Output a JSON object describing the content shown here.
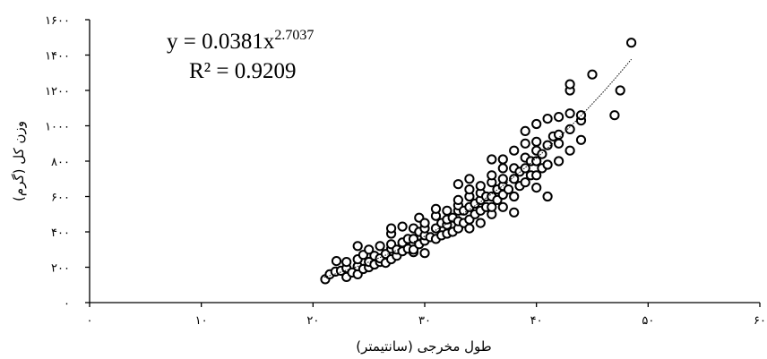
{
  "chart_data": {
    "type": "scatter",
    "xlabel": "طول مخرجی (سانتیمتر)",
    "ylabel": "وزن کل (گرم)",
    "xlim": [
      0,
      60
    ],
    "ylim": [
      0,
      1600
    ],
    "x_ticks": [
      0,
      10,
      20,
      30,
      40,
      50,
      60
    ],
    "y_ticks": [
      0,
      200,
      400,
      600,
      800,
      1000,
      1200,
      1400,
      1600
    ],
    "x_tick_labels": [
      "۰",
      "۱۰",
      "۲۰",
      "۳۰",
      "۴۰",
      "۵۰",
      "۶۰"
    ],
    "y_tick_labels": [
      "۰",
      "۲۰۰",
      "۴۰۰",
      "۶۰۰",
      "۸۰۰",
      "۱۰۰۰",
      "۱۲۰۰",
      "۱۴۰۰",
      "۱۶۰۰"
    ],
    "grid": false,
    "equation": {
      "main": "y = 0.0381x",
      "exponent": "2.7037",
      "r2_label": "R² = 0.9209"
    },
    "trendline": {
      "a": 0.0381,
      "b": 2.7037,
      "x_range": [
        21,
        48.5
      ]
    },
    "series": [
      {
        "marker": "open-circle",
        "points": [
          [
            21.1,
            132
          ],
          [
            21.5,
            160
          ],
          [
            22.0,
            175
          ],
          [
            22.1,
            235
          ],
          [
            22.5,
            180
          ],
          [
            23.0,
            145
          ],
          [
            23.0,
            195
          ],
          [
            23.0,
            230
          ],
          [
            23.5,
            170
          ],
          [
            24.0,
            160
          ],
          [
            24.0,
            205
          ],
          [
            24.0,
            245
          ],
          [
            24.0,
            320
          ],
          [
            24.5,
            190
          ],
          [
            24.5,
            270
          ],
          [
            25.0,
            200
          ],
          [
            25.0,
            230
          ],
          [
            25.0,
            300
          ],
          [
            25.5,
            215
          ],
          [
            25.5,
            265
          ],
          [
            26.0,
            230
          ],
          [
            26.0,
            250
          ],
          [
            26.0,
            320
          ],
          [
            26.5,
            225
          ],
          [
            26.5,
            275
          ],
          [
            27.0,
            245
          ],
          [
            27.0,
            305
          ],
          [
            27.0,
            330
          ],
          [
            27.0,
            390
          ],
          [
            27.0,
            420
          ],
          [
            27.5,
            265
          ],
          [
            27.5,
            300
          ],
          [
            28.0,
            290
          ],
          [
            28.0,
            340
          ],
          [
            28.0,
            430
          ],
          [
            28.5,
            305
          ],
          [
            28.5,
            360
          ],
          [
            29.0,
            285
          ],
          [
            29.0,
            300
          ],
          [
            29.0,
            360
          ],
          [
            29.0,
            420
          ],
          [
            29.5,
            330
          ],
          [
            29.5,
            400
          ],
          [
            29.5,
            480
          ],
          [
            30.0,
            280
          ],
          [
            30.0,
            350
          ],
          [
            30.0,
            380
          ],
          [
            30.0,
            420
          ],
          [
            30.0,
            450
          ],
          [
            30.5,
            370
          ],
          [
            31.0,
            360
          ],
          [
            31.0,
            420
          ],
          [
            31.0,
            490
          ],
          [
            31.0,
            530
          ],
          [
            31.5,
            380
          ],
          [
            31.5,
            450
          ],
          [
            32.0,
            390
          ],
          [
            32.0,
            440
          ],
          [
            32.0,
            470
          ],
          [
            32.0,
            520
          ],
          [
            32.5,
            400
          ],
          [
            32.5,
            480
          ],
          [
            33.0,
            420
          ],
          [
            33.0,
            460
          ],
          [
            33.0,
            520
          ],
          [
            33.0,
            550
          ],
          [
            33.0,
            580
          ],
          [
            33.0,
            670
          ],
          [
            33.5,
            450
          ],
          [
            33.5,
            520
          ],
          [
            34.0,
            420
          ],
          [
            34.0,
            470
          ],
          [
            34.0,
            540
          ],
          [
            34.0,
            600
          ],
          [
            34.0,
            640
          ],
          [
            34.0,
            700
          ],
          [
            34.5,
            500
          ],
          [
            34.5,
            560
          ],
          [
            35.0,
            450
          ],
          [
            35.0,
            520
          ],
          [
            35.0,
            580
          ],
          [
            35.0,
            620
          ],
          [
            35.0,
            660
          ],
          [
            35.5,
            540
          ],
          [
            35.5,
            600
          ],
          [
            36.0,
            500
          ],
          [
            36.0,
            540
          ],
          [
            36.0,
            600
          ],
          [
            36.0,
            680
          ],
          [
            36.0,
            720
          ],
          [
            36.0,
            810
          ],
          [
            36.5,
            580
          ],
          [
            36.5,
            640
          ],
          [
            37.0,
            540
          ],
          [
            37.0,
            610
          ],
          [
            37.0,
            660
          ],
          [
            37.0,
            700
          ],
          [
            37.0,
            760
          ],
          [
            37.0,
            810
          ],
          [
            37.5,
            640
          ],
          [
            38.0,
            510
          ],
          [
            38.0,
            600
          ],
          [
            38.0,
            700
          ],
          [
            38.0,
            760
          ],
          [
            38.0,
            860
          ],
          [
            38.5,
            660
          ],
          [
            38.5,
            740
          ],
          [
            39.0,
            680
          ],
          [
            39.0,
            760
          ],
          [
            39.0,
            820
          ],
          [
            39.0,
            900
          ],
          [
            39.0,
            970
          ],
          [
            39.5,
            720
          ],
          [
            39.5,
            800
          ],
          [
            40.0,
            650
          ],
          [
            40.0,
            720
          ],
          [
            40.0,
            800
          ],
          [
            40.0,
            860
          ],
          [
            40.0,
            910
          ],
          [
            40.0,
            1010
          ],
          [
            40.5,
            760
          ],
          [
            40.5,
            840
          ],
          [
            41.0,
            600
          ],
          [
            41.0,
            780
          ],
          [
            41.0,
            890
          ],
          [
            41.0,
            1040
          ],
          [
            41.5,
            940
          ],
          [
            42.0,
            800
          ],
          [
            42.0,
            900
          ],
          [
            42.0,
            950
          ],
          [
            42.0,
            1050
          ],
          [
            43.0,
            860
          ],
          [
            43.0,
            980
          ],
          [
            43.0,
            1070
          ],
          [
            43.0,
            1200
          ],
          [
            43.0,
            1235
          ],
          [
            44.0,
            920
          ],
          [
            44.0,
            1030
          ],
          [
            44.0,
            1060
          ],
          [
            45.0,
            1290
          ],
          [
            47.0,
            1060
          ],
          [
            47.5,
            1200
          ],
          [
            48.5,
            1470
          ]
        ]
      }
    ]
  }
}
